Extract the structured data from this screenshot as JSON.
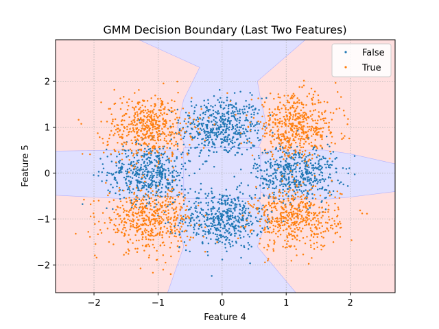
{
  "chart_data": {
    "type": "scatter",
    "title": "GMM Decision Boundary (Last Two Features)",
    "xlabel": "Feature 4",
    "ylabel": "Feature 5",
    "xlim": [
      -2.6,
      2.7
    ],
    "ylim": [
      -2.6,
      2.9
    ],
    "xticks": [
      -2,
      -1,
      0,
      1,
      2
    ],
    "yticks": [
      -2,
      -1,
      0,
      1,
      2
    ],
    "grid": true,
    "legend_placement": "top-right",
    "background_regions": {
      "False_color": "#e0e0ff",
      "True_color": "#ffe0e0"
    },
    "series": [
      {
        "name": "False",
        "color": "#1f77b4",
        "clusters": [
          {
            "center": [
              0.0,
              1.0
            ],
            "spread": 0.32,
            "approx_points": 500
          },
          {
            "center": [
              0.0,
              -1.0
            ],
            "spread": 0.32,
            "approx_points": 500
          },
          {
            "center": [
              -1.15,
              0.0
            ],
            "spread": 0.32,
            "approx_points": 500
          },
          {
            "center": [
              1.15,
              0.0
            ],
            "spread": 0.32,
            "approx_points": 500
          }
        ]
      },
      {
        "name": "True",
        "color": "#ff7f0e",
        "clusters": [
          {
            "center": [
              -1.15,
              1.0
            ],
            "spread": 0.34,
            "approx_points": 500
          },
          {
            "center": [
              1.15,
              1.0
            ],
            "spread": 0.34,
            "approx_points": 500
          },
          {
            "center": [
              -1.15,
              -1.0
            ],
            "spread": 0.34,
            "approx_points": 500
          },
          {
            "center": [
              1.15,
              -1.0
            ],
            "spread": 0.34,
            "approx_points": 500
          }
        ]
      }
    ]
  }
}
